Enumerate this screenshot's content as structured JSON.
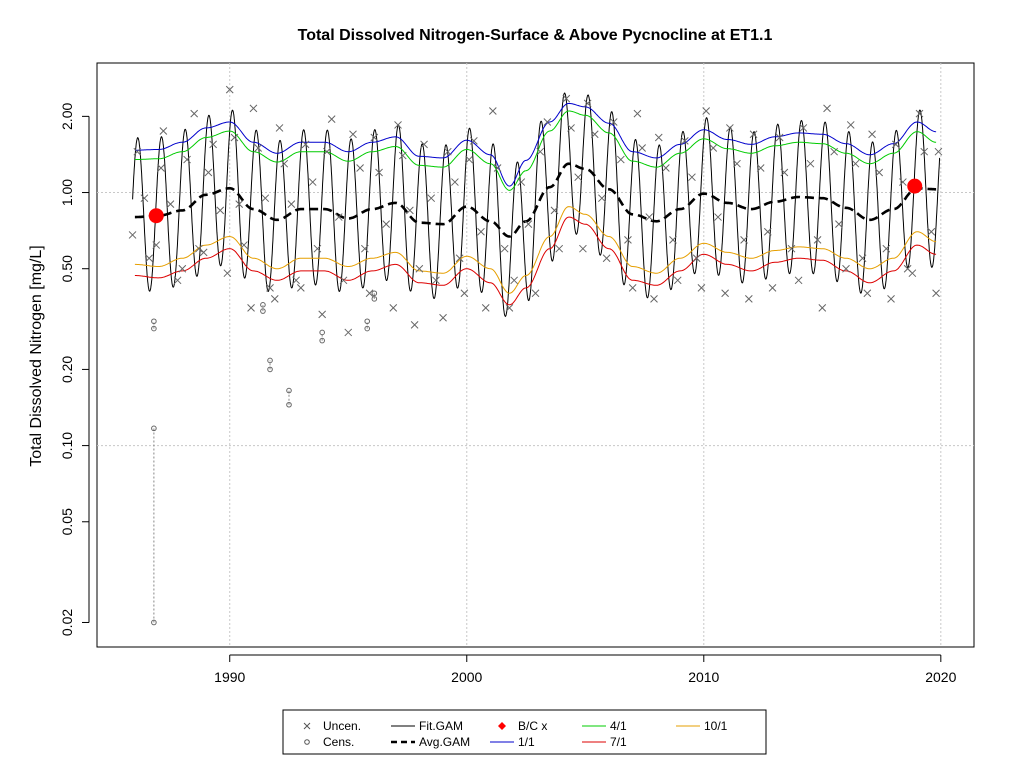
{
  "chart_data": {
    "type": "line",
    "title": "Total Dissolved Nitrogen-Surface & Above Pycnocline at ET1.1",
    "xlabel": "",
    "ylabel": "Total Dissolved Nitrogen [mg/L]",
    "yscale": "log",
    "xlim": [
      1984.4,
      2021.4
    ],
    "ylim": [
      0.016,
      3.25
    ],
    "xticks": [
      1990,
      2000,
      2010,
      2020
    ],
    "xtick_labels": [
      "1990",
      "2000",
      "2010",
      "2020"
    ],
    "yticks": [
      0.02,
      0.05,
      0.1,
      0.2,
      0.5,
      1.0,
      2.0
    ],
    "ytick_labels": [
      "0.02",
      "0.05",
      "0.10",
      "0.20",
      "0.50",
      "1.00",
      "2.00"
    ],
    "grid": true,
    "legend_position": "bottom",
    "legend": [
      {
        "label": "Uncen.",
        "type": "x-marker",
        "color": "#555555"
      },
      {
        "label": "Cens.",
        "type": "o-marker",
        "color": "#555555"
      },
      {
        "label": "Fit.GAM",
        "type": "line",
        "color": "#000000"
      },
      {
        "label": "Avg.GAM",
        "type": "dashed",
        "color": "#000000"
      },
      {
        "label": "B/C x",
        "type": "diamond",
        "color": "#ff0000"
      },
      {
        "label": "1/1",
        "type": "line",
        "color": "#0000cc"
      },
      {
        "label": "4/1",
        "type": "line",
        "color": "#00cc00"
      },
      {
        "label": "7/1",
        "type": "line",
        "color": "#dd0000"
      },
      {
        "label": "10/1",
        "type": "line",
        "color": "#e69f00"
      }
    ],
    "avg_gam": {
      "x": [
        1986.0,
        1987.0,
        1988.0,
        1989.0,
        1990.0,
        1991.0,
        1992.0,
        1993.0,
        1994.0,
        1995.0,
        1996.0,
        1997.0,
        1998.0,
        1999.0,
        2000.0,
        2001.0,
        2001.8,
        2002.5,
        2003.5,
        2004.3,
        2005.0,
        2006.0,
        2007.0,
        2008.0,
        2009.0,
        2010.0,
        2011.0,
        2012.0,
        2013.0,
        2014.0,
        2015.0,
        2016.0,
        2017.0,
        2018.0,
        2019.0,
        2019.8
      ],
      "y": [
        0.8,
        0.81,
        0.85,
        0.98,
        1.04,
        0.86,
        0.78,
        0.86,
        0.86,
        0.79,
        0.86,
        0.91,
        0.76,
        0.75,
        0.88,
        0.77,
        0.67,
        0.77,
        1.05,
        1.3,
        1.24,
        1.03,
        0.82,
        0.77,
        0.86,
        0.99,
        0.91,
        0.86,
        0.92,
        0.96,
        0.95,
        0.87,
        0.78,
        0.86,
        1.04,
        1.03
      ]
    },
    "trend_1_1": {
      "x": [
        1986.0,
        1987.0,
        1988.0,
        1989.0,
        1990.0,
        1991.0,
        1992.0,
        1993.0,
        1994.0,
        1995.0,
        1996.0,
        1997.0,
        1998.0,
        1999.0,
        2000.0,
        2001.0,
        2001.8,
        2002.5,
        2003.5,
        2004.3,
        2005.0,
        2006.0,
        2007.0,
        2008.0,
        2009.0,
        2010.0,
        2011.0,
        2012.0,
        2013.0,
        2014.0,
        2015.0,
        2016.0,
        2017.0,
        2018.0,
        2019.0,
        2019.8
      ],
      "y": [
        1.47,
        1.48,
        1.58,
        1.8,
        1.9,
        1.58,
        1.43,
        1.58,
        1.58,
        1.45,
        1.58,
        1.66,
        1.39,
        1.37,
        1.61,
        1.41,
        1.06,
        1.34,
        1.9,
        2.25,
        2.18,
        1.88,
        1.45,
        1.37,
        1.55,
        1.77,
        1.62,
        1.55,
        1.66,
        1.72,
        1.7,
        1.56,
        1.41,
        1.56,
        1.9,
        1.74
      ]
    },
    "trend_4_1": {
      "x": [
        1986.0,
        1987.0,
        1988.0,
        1989.0,
        1990.0,
        1991.0,
        1992.0,
        1993.0,
        1994.0,
        1995.0,
        1996.0,
        1997.0,
        1998.0,
        1999.0,
        2000.0,
        2001.0,
        2001.8,
        2002.5,
        2003.5,
        2004.3,
        2005.0,
        2006.0,
        2007.0,
        2008.0,
        2009.0,
        2010.0,
        2011.0,
        2012.0,
        2013.0,
        2014.0,
        2015.0,
        2016.0,
        2017.0,
        2018.0,
        2019.0,
        2019.8
      ],
      "y": [
        1.35,
        1.36,
        1.45,
        1.65,
        1.75,
        1.45,
        1.32,
        1.45,
        1.45,
        1.33,
        1.45,
        1.52,
        1.28,
        1.26,
        1.48,
        1.3,
        1.02,
        1.22,
        1.75,
        2.1,
        2.02,
        1.72,
        1.33,
        1.26,
        1.43,
        1.63,
        1.49,
        1.43,
        1.53,
        1.58,
        1.56,
        1.43,
        1.3,
        1.43,
        1.74,
        1.58
      ]
    },
    "trend_7_1": {
      "x": [
        1986.0,
        1987.0,
        1988.0,
        1989.0,
        1990.0,
        1991.0,
        1992.0,
        1993.0,
        1994.0,
        1995.0,
        1996.0,
        1997.0,
        1998.0,
        1999.0,
        2000.0,
        2001.0,
        2001.8,
        2002.5,
        2003.5,
        2004.3,
        2005.0,
        2006.0,
        2007.0,
        2008.0,
        2009.0,
        2010.0,
        2011.0,
        2012.0,
        2013.0,
        2014.0,
        2015.0,
        2016.0,
        2017.0,
        2018.0,
        2019.0,
        2019.8
      ],
      "y": [
        0.47,
        0.46,
        0.49,
        0.55,
        0.6,
        0.49,
        0.45,
        0.49,
        0.49,
        0.45,
        0.49,
        0.52,
        0.44,
        0.43,
        0.5,
        0.44,
        0.36,
        0.42,
        0.6,
        0.8,
        0.75,
        0.6,
        0.45,
        0.43,
        0.49,
        0.57,
        0.52,
        0.49,
        0.53,
        0.55,
        0.54,
        0.49,
        0.44,
        0.49,
        0.62,
        0.57
      ]
    },
    "trend_10_1": {
      "x": [
        1986.0,
        1987.0,
        1988.0,
        1989.0,
        1990.0,
        1991.0,
        1992.0,
        1993.0,
        1994.0,
        1995.0,
        1996.0,
        1997.0,
        1998.0,
        1999.0,
        2000.0,
        2001.0,
        2001.8,
        2002.5,
        2003.5,
        2004.3,
        2005.0,
        2006.0,
        2007.0,
        2008.0,
        2009.0,
        2010.0,
        2011.0,
        2012.0,
        2013.0,
        2014.0,
        2015.0,
        2016.0,
        2017.0,
        2018.0,
        2019.0,
        2019.8
      ],
      "y": [
        0.52,
        0.51,
        0.55,
        0.62,
        0.67,
        0.55,
        0.5,
        0.55,
        0.55,
        0.51,
        0.55,
        0.58,
        0.49,
        0.48,
        0.56,
        0.5,
        0.4,
        0.47,
        0.67,
        0.88,
        0.82,
        0.67,
        0.51,
        0.48,
        0.55,
        0.63,
        0.58,
        0.55,
        0.59,
        0.61,
        0.6,
        0.55,
        0.5,
        0.55,
        0.7,
        0.64
      ]
    },
    "fit_gam": {
      "description_type": "seasonal oscillation around Avg.GAM",
      "peak_month_fraction": 0.12,
      "x_range": [
        1985.9,
        2019.95
      ],
      "peak_follows": "trend_1_1_upper",
      "trough_follows": "trend_7_1_lower"
    },
    "bc_points": [
      {
        "x": 1986.9,
        "y": 0.81
      },
      {
        "x": 2018.9,
        "y": 1.06
      }
    ],
    "uncensored": [
      [
        1985.9,
        0.68
      ],
      [
        1986.1,
        1.45
      ],
      [
        1986.4,
        0.95
      ],
      [
        1986.6,
        0.55
      ],
      [
        1986.9,
        0.62
      ],
      [
        1987.1,
        1.25
      ],
      [
        1987.2,
        1.75
      ],
      [
        1987.5,
        0.9
      ],
      [
        1987.8,
        0.45
      ],
      [
        1988.0,
        0.5
      ],
      [
        1988.2,
        1.35
      ],
      [
        1988.5,
        2.05
      ],
      [
        1988.7,
        0.6
      ],
      [
        1988.9,
        0.58
      ],
      [
        1989.1,
        1.2
      ],
      [
        1989.3,
        1.55
      ],
      [
        1989.6,
        0.85
      ],
      [
        1989.9,
        0.48
      ],
      [
        1990.0,
        2.55
      ],
      [
        1990.2,
        1.65
      ],
      [
        1990.4,
        0.9
      ],
      [
        1990.6,
        0.62
      ],
      [
        1990.9,
        0.35
      ],
      [
        1991.0,
        2.15
      ],
      [
        1991.2,
        1.5
      ],
      [
        1991.5,
        0.95
      ],
      [
        1991.7,
        0.42
      ],
      [
        1991.9,
        0.38
      ],
      [
        1992.1,
        1.8
      ],
      [
        1992.3,
        1.3
      ],
      [
        1992.6,
        0.9
      ],
      [
        1992.8,
        0.45
      ],
      [
        1993.0,
        0.42
      ],
      [
        1993.2,
        1.55
      ],
      [
        1993.5,
        1.1
      ],
      [
        1993.7,
        0.6
      ],
      [
        1993.9,
        0.33
      ],
      [
        1994.1,
        1.45
      ],
      [
        1994.3,
        1.95
      ],
      [
        1994.6,
        0.8
      ],
      [
        1994.8,
        0.45
      ],
      [
        1995.0,
        0.28
      ],
      [
        1995.2,
        1.7
      ],
      [
        1995.5,
        1.25
      ],
      [
        1995.7,
        0.6
      ],
      [
        1995.9,
        0.4
      ],
      [
        1996.1,
        1.65
      ],
      [
        1996.3,
        1.2
      ],
      [
        1996.6,
        0.75
      ],
      [
        1996.9,
        0.35
      ],
      [
        1997.1,
        1.85
      ],
      [
        1997.3,
        1.4
      ],
      [
        1997.6,
        0.85
      ],
      [
        1997.8,
        0.3
      ],
      [
        1998.0,
        0.5
      ],
      [
        1998.2,
        1.55
      ],
      [
        1998.5,
        0.95
      ],
      [
        1998.7,
        0.45
      ],
      [
        1999.0,
        0.32
      ],
      [
        1999.2,
        1.45
      ],
      [
        1999.5,
        1.1
      ],
      [
        1999.7,
        0.55
      ],
      [
        1999.9,
        0.4
      ],
      [
        2000.1,
        1.35
      ],
      [
        2000.3,
        1.6
      ],
      [
        2000.6,
        0.7
      ],
      [
        2000.8,
        0.35
      ],
      [
        2001.1,
        2.1
      ],
      [
        2001.3,
        1.25
      ],
      [
        2001.6,
        0.6
      ],
      [
        2001.8,
        0.35
      ],
      [
        2002.0,
        0.45
      ],
      [
        2002.3,
        1.1
      ],
      [
        2002.6,
        0.75
      ],
      [
        2002.9,
        0.4
      ],
      [
        2003.1,
        1.45
      ],
      [
        2003.4,
        1.9
      ],
      [
        2003.7,
        0.85
      ],
      [
        2003.9,
        0.6
      ],
      [
        2004.2,
        2.35
      ],
      [
        2004.4,
        1.8
      ],
      [
        2004.7,
        1.15
      ],
      [
        2004.9,
        0.6
      ],
      [
        2005.1,
        2.25
      ],
      [
        2005.4,
        1.7
      ],
      [
        2005.7,
        0.95
      ],
      [
        2005.9,
        0.55
      ],
      [
        2006.2,
        1.9
      ],
      [
        2006.5,
        1.35
      ],
      [
        2006.8,
        0.65
      ],
      [
        2007.0,
        0.42
      ],
      [
        2007.2,
        2.05
      ],
      [
        2007.4,
        1.5
      ],
      [
        2007.7,
        0.8
      ],
      [
        2007.9,
        0.38
      ],
      [
        2008.1,
        1.65
      ],
      [
        2008.4,
        1.25
      ],
      [
        2008.7,
        0.65
      ],
      [
        2008.9,
        0.45
      ],
      [
        2009.2,
        1.6
      ],
      [
        2009.5,
        1.15
      ],
      [
        2009.7,
        0.55
      ],
      [
        2009.9,
        0.42
      ],
      [
        2010.1,
        2.1
      ],
      [
        2010.4,
        1.5
      ],
      [
        2010.6,
        0.8
      ],
      [
        2010.9,
        0.4
      ],
      [
        2011.1,
        1.8
      ],
      [
        2011.4,
        1.3
      ],
      [
        2011.7,
        0.65
      ],
      [
        2011.9,
        0.38
      ],
      [
        2012.1,
        1.7
      ],
      [
        2012.4,
        1.25
      ],
      [
        2012.7,
        0.7
      ],
      [
        2012.9,
        0.42
      ],
      [
        2013.2,
        1.65
      ],
      [
        2013.4,
        1.2
      ],
      [
        2013.7,
        0.6
      ],
      [
        2014.0,
        0.45
      ],
      [
        2014.2,
        1.8
      ],
      [
        2014.5,
        1.3
      ],
      [
        2014.8,
        0.65
      ],
      [
        2015.0,
        0.35
      ],
      [
        2015.2,
        2.15
      ],
      [
        2015.5,
        1.45
      ],
      [
        2015.7,
        0.75
      ],
      [
        2016.0,
        0.5
      ],
      [
        2016.2,
        1.85
      ],
      [
        2016.4,
        1.3
      ],
      [
        2016.7,
        0.55
      ],
      [
        2016.9,
        0.4
      ],
      [
        2017.1,
        1.7
      ],
      [
        2017.4,
        1.2
      ],
      [
        2017.7,
        0.6
      ],
      [
        2017.9,
        0.38
      ],
      [
        2018.1,
        1.55
      ],
      [
        2018.4,
        1.1
      ],
      [
        2018.6,
        0.5
      ],
      [
        2018.8,
        0.48
      ],
      [
        2019.1,
        2.05
      ],
      [
        2019.3,
        1.45
      ],
      [
        2019.6,
        0.7
      ],
      [
        2019.8,
        0.4
      ],
      [
        2019.9,
        1.45
      ]
    ],
    "censored": [
      {
        "x": 1986.8,
        "low": 0.02,
        "high": 0.117
      },
      {
        "x": 1986.8,
        "low": 0.29,
        "high": 0.31
      },
      {
        "x": 1991.4,
        "low": 0.34,
        "high": 0.36
      },
      {
        "x": 1991.7,
        "low": 0.2,
        "high": 0.217
      },
      {
        "x": 1992.5,
        "low": 0.145,
        "high": 0.165
      },
      {
        "x": 1993.9,
        "low": 0.26,
        "high": 0.28
      },
      {
        "x": 1995.8,
        "low": 0.29,
        "high": 0.31
      },
      {
        "x": 1996.1,
        "low": 0.38,
        "high": 0.4
      }
    ]
  }
}
